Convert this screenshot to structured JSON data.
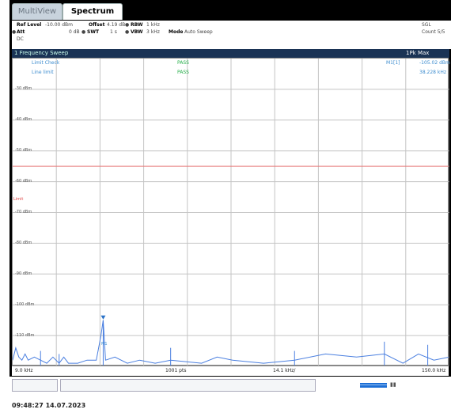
{
  "tabs": [
    {
      "label": "MultiView"
    },
    {
      "label": "Spectrum"
    }
  ],
  "settings": {
    "ref_level_label": "Ref Level",
    "ref_level_value": "-10.00 dBm",
    "offset_label": "Offset",
    "offset_value": "4.19 dB",
    "rbw_label": "RBW",
    "rbw_value": "1 kHz",
    "att_label": "Att",
    "att_value": "0 dB",
    "swt_label": "SWT",
    "swt_value": "1 s",
    "vbw_label": "VBW",
    "vbw_value": "3 kHz",
    "mode_label": "Mode",
    "mode_value": "Auto Sweep",
    "sgl": "SGL",
    "count": "Count 5/5",
    "dc": "DC"
  },
  "window": {
    "title": "1 Frequency Sweep",
    "trace": "1Pk Max"
  },
  "limits": {
    "limit_check_label": "Limit Check",
    "limit_check_result": "PASS",
    "line_limit_label": "Line limit",
    "line_limit_result": "PASS"
  },
  "marker": {
    "label": "M1[1]",
    "level": "-105.02 dBm",
    "freq": "38.228 kHz",
    "tag": "M1"
  },
  "y_axis_labels": [
    "-30 dBm",
    "-40 dBm",
    "-50 dBm",
    "-60 dBm",
    "-70 dBm",
    "-80 dBm",
    "-90 dBm",
    "-100 dBm",
    "-110 dBm"
  ],
  "limit_line_label": "Limit",
  "x_axis": {
    "start": "9.0 kHz",
    "points": "1001 pts",
    "step": "14.1 kHz/",
    "stop": "150.0 kHz"
  },
  "status": {
    "timestamp": "09:48:27 14.07.2023",
    "measuring_icon": "progress-bar-icon"
  },
  "chart_data": {
    "type": "line",
    "title": "1 Frequency Sweep",
    "xlabel": "",
    "ylabel": "",
    "xlim": [
      9.0,
      150.0
    ],
    "ylim": [
      -120,
      -20
    ],
    "limit_line": -55,
    "series": [
      {
        "name": "1Pk Max",
        "x": [
          9.0,
          10.0,
          11.0,
          12.0,
          13.0,
          14.0,
          16.0,
          18.0,
          20.0,
          22.0,
          24.0,
          25.5,
          27.0,
          30.0,
          33.0,
          36.0,
          37.5,
          38.228,
          39.0,
          42.0,
          46.0,
          50.0,
          55.0,
          60.0,
          70.0,
          75.0,
          80.0,
          90.0,
          100.0,
          110.0,
          120.0,
          129.0,
          135.0,
          140.0,
          145.0,
          150.0
        ],
        "y": [
          -118,
          -114,
          -117,
          -118,
          -116,
          -118,
          -117,
          -118,
          -119,
          -117,
          -119,
          -117,
          -119,
          -119,
          -118,
          -118,
          -110,
          -105.02,
          -118,
          -117,
          -119,
          -118,
          -119,
          -118,
          -119,
          -117,
          -118,
          -119,
          -118,
          -116,
          -117,
          -116,
          -119,
          -116,
          -118,
          -117
        ]
      }
    ]
  }
}
